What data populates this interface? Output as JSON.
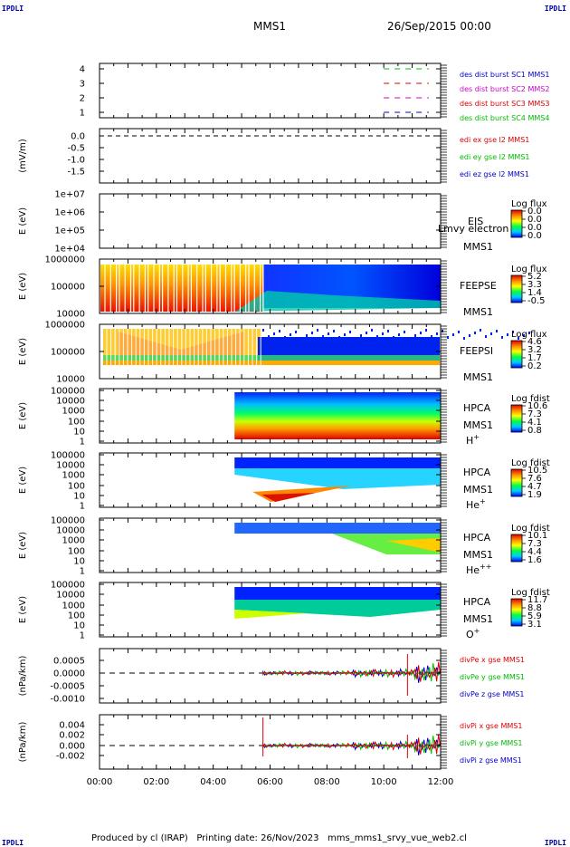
{
  "corner_tag": "IPDLI",
  "header": {
    "spacecraft": "MMS1",
    "datetime": "26/Sep/2015 00:00"
  },
  "footer": "Produced by cl (IRAP)   Printing date: 26/Nov/2023   mms_mms1_srvy_vue_web2.cl",
  "chart_data": {
    "type": "multi-panel time series / spectrogram stack",
    "x_range": [
      "00:00",
      "12:00"
    ],
    "x_ticks": [
      "00:00",
      "02:00",
      "04:00",
      "06:00",
      "08:00",
      "10:00",
      "12:00"
    ],
    "panels": [
      {
        "id": "burst",
        "type": "line",
        "ylabel": "",
        "y_ticks": [
          "4",
          "3",
          "2",
          "1"
        ],
        "series": [
          {
            "name": "des dist burst SC1 MMS1",
            "color": "#0000cc",
            "y": 1,
            "x_range": [
              "10:00",
              "11:35"
            ]
          },
          {
            "name": "des dist burst SC2 MMS2",
            "color": "#cc00cc",
            "y": 2,
            "x_range": [
              "10:00",
              "11:35"
            ]
          },
          {
            "name": "des dist burst SC3 MMS3",
            "color": "#dd0000",
            "y": 3,
            "x_range": [
              "10:00",
              "11:35"
            ]
          },
          {
            "name": "des dist burst SC4 MMS4",
            "color": "#00bb00",
            "y": 4,
            "x_range": [
              "10:00",
              "11:35"
            ]
          }
        ]
      },
      {
        "id": "edi",
        "type": "line",
        "ylabel": "(mV/m)",
        "y_ticks": [
          "0.0",
          "-0.5",
          "-1.0",
          "-1.5"
        ],
        "series": [
          {
            "name": "edi ex gse l2 MMS1",
            "color": "#dd0000"
          },
          {
            "name": "edi ey gse l2 MMS1",
            "color": "#00bb00"
          },
          {
            "name": "edi ez gse l2 MMS1",
            "color": "#0000cc"
          }
        ]
      },
      {
        "id": "eis",
        "type": "heatmap",
        "ylabel": "E (eV)",
        "y_ticks": [
          "1e+07",
          "1e+06",
          "1e+05",
          "1e+04"
        ],
        "labels": [
          "EIS",
          "MMS1"
        ],
        "overlap_label": "Lmvy electron to",
        "colorbar": {
          "title": "Log flux",
          "ticks": [
            "0.0",
            "0.0",
            "0.0",
            "0.0"
          ]
        }
      },
      {
        "id": "feepse",
        "type": "heatmap",
        "ylabel": "E (eV)",
        "y_ticks": [
          "1000000",
          "100000",
          "10000"
        ],
        "labels": [
          "FEEPSE",
          "MMS1"
        ],
        "colorbar": {
          "title": "Log flux",
          "ticks": [
            "5.2",
            "3.3",
            "1.4",
            "-0.5"
          ]
        }
      },
      {
        "id": "feepsi",
        "type": "heatmap",
        "ylabel": "E (eV)",
        "y_ticks": [
          "1000000",
          "100000",
          "10000"
        ],
        "labels": [
          "FEEPSI",
          "MMS1"
        ],
        "colorbar": {
          "title": "Log flux",
          "ticks": [
            "4.6",
            "3.2",
            "1.7",
            "0.2"
          ]
        }
      },
      {
        "id": "hpca_h",
        "type": "heatmap",
        "ylabel": "E (eV)",
        "y_ticks": [
          "100000",
          "10000",
          "1000",
          "100",
          "10",
          "1"
        ],
        "labels": [
          "HPCA",
          "MMS1"
        ],
        "species": "H",
        "charge": "+",
        "colorbar": {
          "title": "Log fdist",
          "ticks": [
            "10.6",
            "7.3",
            "4.1",
            "0.8"
          ]
        }
      },
      {
        "id": "hpca_he",
        "type": "heatmap",
        "ylabel": "E (eV)",
        "y_ticks": [
          "100000",
          "10000",
          "1000",
          "100",
          "10",
          "1"
        ],
        "labels": [
          "HPCA",
          "MMS1"
        ],
        "species": "He",
        "charge": "+",
        "colorbar": {
          "title": "Log fdist",
          "ticks": [
            "10.5",
            "7.6",
            "4.7",
            "1.9"
          ]
        }
      },
      {
        "id": "hpca_he2",
        "type": "heatmap",
        "ylabel": "E (eV)",
        "y_ticks": [
          "100000",
          "10000",
          "1000",
          "100",
          "10",
          "1"
        ],
        "labels": [
          "HPCA",
          "MMS1"
        ],
        "species": "He",
        "charge": "++",
        "colorbar": {
          "title": "Log fdist",
          "ticks": [
            "10.1",
            "7.3",
            "4.4",
            "1.6"
          ]
        }
      },
      {
        "id": "hpca_o",
        "type": "heatmap",
        "ylabel": "E (eV)",
        "y_ticks": [
          "100000",
          "10000",
          "1000",
          "100",
          "10",
          "1"
        ],
        "labels": [
          "HPCA",
          "MMS1"
        ],
        "species": "O",
        "charge": "+",
        "colorbar": {
          "title": "Log fdist",
          "ticks": [
            "11.7",
            "8.8",
            "5.9",
            "3.1"
          ]
        }
      },
      {
        "id": "divpe",
        "type": "line",
        "ylabel": "(nPa/km)",
        "y_ticks": [
          "0.0005",
          "0.0000",
          "-0.0005",
          "-0.0010"
        ],
        "series": [
          {
            "name": "divPe x gse MMS1",
            "color": "#dd0000"
          },
          {
            "name": "divPe y gse MMS1",
            "color": "#00bb00"
          },
          {
            "name": "divPe z gse MMS1",
            "color": "#0000cc"
          }
        ]
      },
      {
        "id": "divpi",
        "type": "line",
        "ylabel": "(nPa/km)",
        "y_ticks": [
          "0.004",
          "0.002",
          "0.000",
          "-0.002"
        ],
        "series": [
          {
            "name": "divPi x gse MMS1",
            "color": "#dd0000"
          },
          {
            "name": "divPi y gse MMS1",
            "color": "#00bb00"
          },
          {
            "name": "divPi z gse MMS1",
            "color": "#0000cc"
          }
        ]
      }
    ]
  }
}
